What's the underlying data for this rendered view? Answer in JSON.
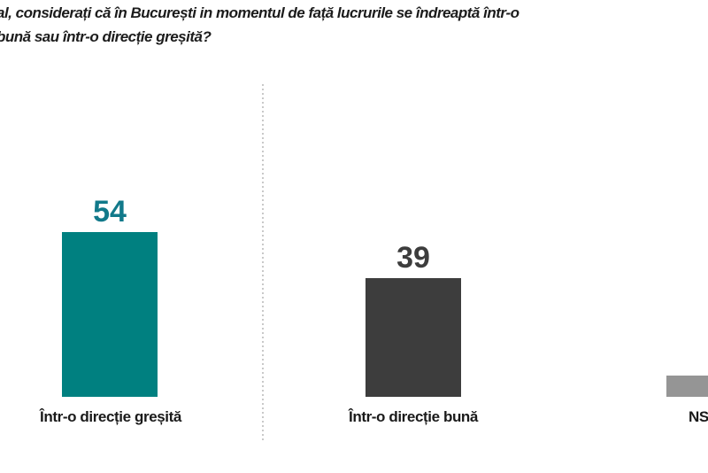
{
  "title": {
    "line1": "al, considerați că în București in momentul de față lucrurile se îndreaptă într-o",
    "line2": "bună sau într-o direcție greșită?",
    "color": "#1c1c1c"
  },
  "chart_data": {
    "type": "bar",
    "orientation": "vertical",
    "title": "al, considerați că în București in momentul de față lucrurile se îndreaptă într-o bună sau într-o direcție greșită?",
    "categories": [
      "Într-o direcție greșită",
      "Într-o direcție bună",
      "NS"
    ],
    "bars": [
      {
        "label": "Într-o direcție greșită",
        "value": 54,
        "show_value": true,
        "color": "#008080",
        "value_color": "#11798a"
      },
      {
        "label": "Într-o direcție bună",
        "value": 39,
        "show_value": true,
        "color": "#3d3d3d",
        "value_color": "#3d3d3d"
      },
      {
        "label": "NS",
        "value": 7,
        "show_value": false,
        "color": "#959595",
        "value_color": "#959595",
        "clipped_right": true
      }
    ],
    "ylim": [
      0,
      60
    ],
    "grid": false,
    "legend": false,
    "separator": {
      "style": "dotted-vertical",
      "color": "#c9c9c9",
      "position": "between first and second bar"
    },
    "notes": "image cropped: question text cut at left edge, third bar and its label cut at right edge"
  }
}
